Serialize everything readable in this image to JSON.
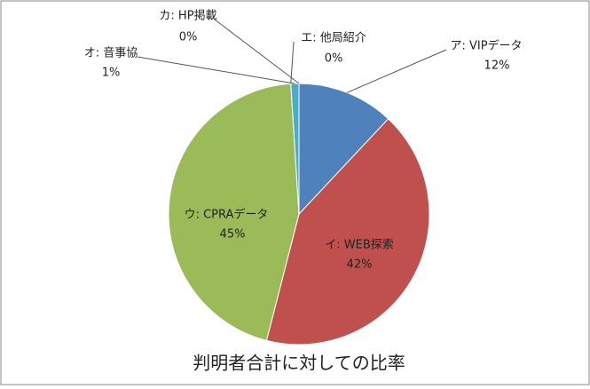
{
  "chart_data": {
    "type": "pie",
    "title": "判明者合計に対しての比率",
    "categories": [
      "ア: VIPデータ",
      "イ: WEB探索",
      "ウ: CPRAデータ",
      "エ: 他局紹介",
      "オ: 音事協",
      "カ: HP掲載"
    ],
    "values": [
      12,
      42,
      45,
      0,
      1,
      0
    ],
    "value_labels": [
      "12%",
      "42%",
      "45%",
      "0%",
      "1%",
      "0%"
    ],
    "colors": [
      "#4f81bd",
      "#c0504d",
      "#9bbb59",
      "#8064a2",
      "#4bacc6",
      "#f79646"
    ]
  }
}
